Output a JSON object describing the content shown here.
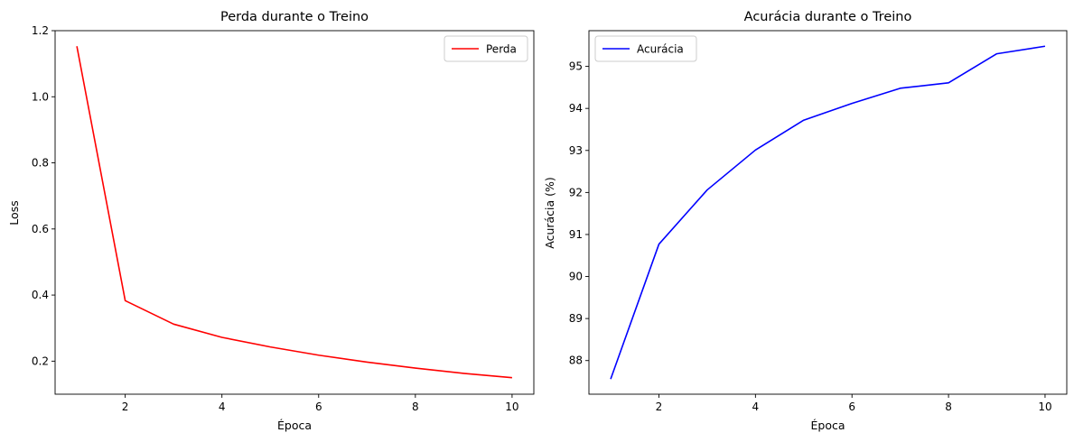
{
  "chart_data": [
    {
      "type": "line",
      "title": "Perda durante o Treino",
      "xlabel": "Época",
      "ylabel": "Loss",
      "xlim": [
        0.55,
        10.45
      ],
      "ylim": [
        0.1,
        1.2
      ],
      "xticks": [
        2,
        4,
        6,
        8,
        10
      ],
      "xtick_labels": [
        "2",
        "4",
        "6",
        "8",
        "10"
      ],
      "yticks": [
        0.2,
        0.4,
        0.6,
        0.8,
        1.0,
        1.2
      ],
      "ytick_labels": [
        "0.2",
        "0.4",
        "0.6",
        "0.8",
        "1.0",
        "1.2"
      ],
      "grid": false,
      "legend_position": "top-right",
      "x": [
        1,
        2,
        3,
        4,
        5,
        6,
        7,
        8,
        9,
        10
      ],
      "series": [
        {
          "name": "Perda",
          "color": "#ff0000",
          "values": [
            1.153,
            0.383,
            0.312,
            0.272,
            0.243,
            0.218,
            0.197,
            0.179,
            0.163,
            0.15
          ]
        }
      ]
    },
    {
      "type": "line",
      "title": "Acurácia durante o Treino",
      "xlabel": "Época",
      "ylabel": "Acurácia (%)",
      "xlim": [
        0.55,
        10.45
      ],
      "ylim": [
        87.2,
        95.85
      ],
      "xticks": [
        2,
        4,
        6,
        8,
        10
      ],
      "xtick_labels": [
        "2",
        "4",
        "6",
        "8",
        "10"
      ],
      "yticks": [
        88,
        89,
        90,
        91,
        92,
        93,
        94,
        95
      ],
      "ytick_labels": [
        "88",
        "89",
        "90",
        "91",
        "92",
        "93",
        "94",
        "95"
      ],
      "grid": false,
      "legend_position": "top-left",
      "x": [
        1,
        2,
        3,
        4,
        5,
        6,
        7,
        8,
        9,
        10
      ],
      "series": [
        {
          "name": "Acurácia",
          "color": "#0000ff",
          "values": [
            87.56,
            90.77,
            92.06,
            93.01,
            93.72,
            94.12,
            94.48,
            94.61,
            95.3,
            95.48
          ]
        }
      ]
    }
  ]
}
